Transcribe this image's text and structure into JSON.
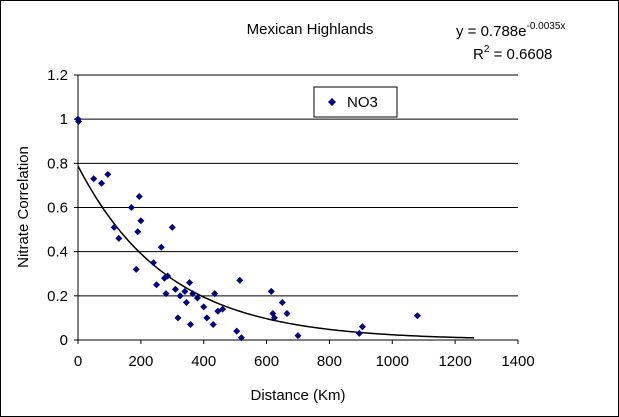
{
  "chart_data": {
    "type": "scatter",
    "title": "Mexican Highlands",
    "xlabel": "Distance (Km)",
    "ylabel": "Nitrate Correlation",
    "xlim": [
      0,
      1400
    ],
    "ylim": [
      0,
      1.2
    ],
    "xticks": [
      "0",
      "200",
      "400",
      "600",
      "800",
      "1000",
      "1200",
      "1400"
    ],
    "yticks": [
      "0",
      "0.2",
      "0.4",
      "0.6",
      "0.8",
      "1",
      "1.2"
    ],
    "grid": "horizontal",
    "legend_position": "top-center",
    "series": [
      {
        "name": "NO3",
        "color": "#000080",
        "marker": "diamond",
        "points": [
          [
            0,
            1.0
          ],
          [
            2,
            0.99
          ],
          [
            50,
            0.73
          ],
          [
            75,
            0.71
          ],
          [
            95,
            0.75
          ],
          [
            115,
            0.51
          ],
          [
            130,
            0.46
          ],
          [
            170,
            0.6
          ],
          [
            190,
            0.49
          ],
          [
            195,
            0.65
          ],
          [
            200,
            0.54
          ],
          [
            185,
            0.32
          ],
          [
            240,
            0.35
          ],
          [
            250,
            0.25
          ],
          [
            265,
            0.42
          ],
          [
            275,
            0.28
          ],
          [
            285,
            0.29
          ],
          [
            280,
            0.21
          ],
          [
            300,
            0.51
          ],
          [
            310,
            0.23
          ],
          [
            318,
            0.1
          ],
          [
            325,
            0.2
          ],
          [
            340,
            0.22
          ],
          [
            345,
            0.17
          ],
          [
            355,
            0.26
          ],
          [
            358,
            0.07
          ],
          [
            365,
            0.21
          ],
          [
            380,
            0.19
          ],
          [
            400,
            0.15
          ],
          [
            410,
            0.1
          ],
          [
            430,
            0.07
          ],
          [
            435,
            0.21
          ],
          [
            445,
            0.13
          ],
          [
            460,
            0.14
          ],
          [
            505,
            0.04
          ],
          [
            515,
            0.27
          ],
          [
            520,
            0.01
          ],
          [
            615,
            0.22
          ],
          [
            620,
            0.12
          ],
          [
            625,
            0.1
          ],
          [
            650,
            0.17
          ],
          [
            665,
            0.12
          ],
          [
            700,
            0.02
          ],
          [
            895,
            0.03
          ],
          [
            905,
            0.06
          ],
          [
            1080,
            0.11
          ]
        ]
      }
    ],
    "trendline": {
      "type": "exponential",
      "a": 0.788,
      "b": -0.0035,
      "x_range": [
        0,
        1260
      ],
      "color": "#000000"
    },
    "equation": {
      "lhs": "y = 0.788e",
      "exponent": "-0.0035x",
      "r2_prefix": "R",
      "r2_sup": "2",
      "r2_value": " = 0.6608"
    }
  }
}
